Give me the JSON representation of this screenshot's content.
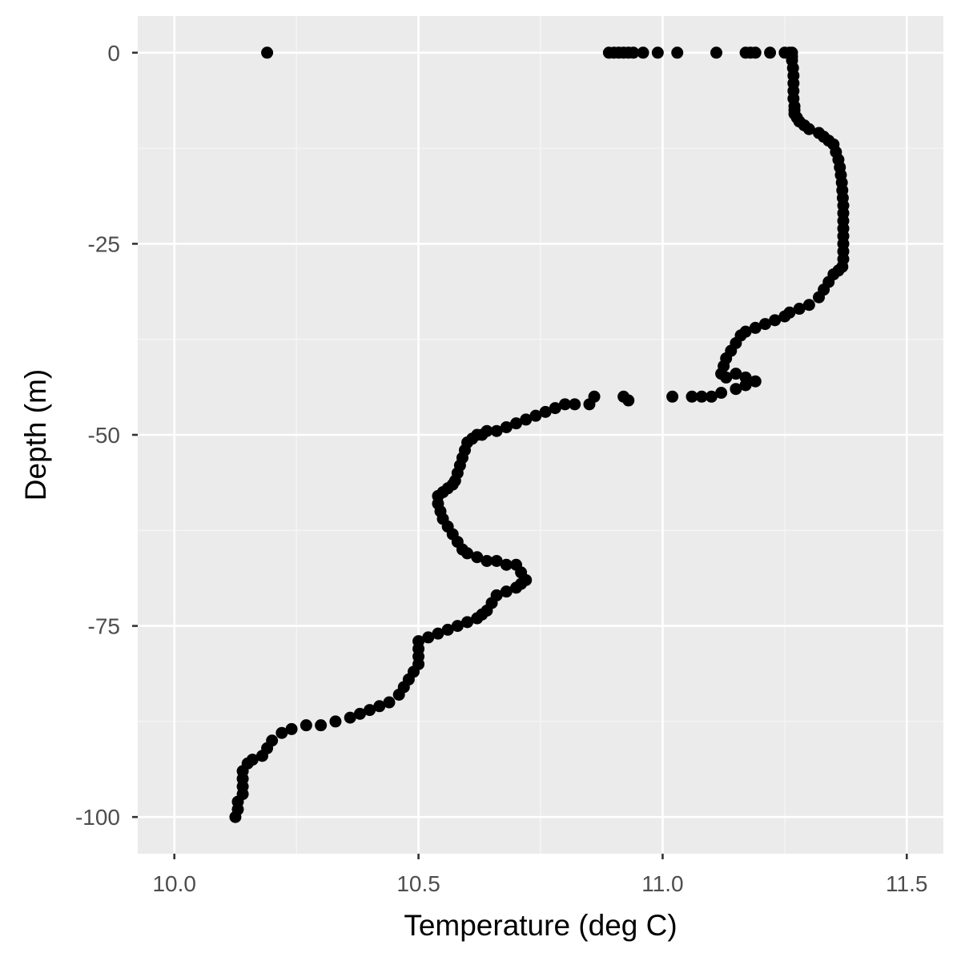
{
  "colors": {
    "panel_bg": "#EBEBEB",
    "grid_major": "#FFFFFF",
    "grid_minor": "#F5F5F5",
    "point": "#000000",
    "tick_text": "#4D4D4D"
  },
  "chart_data": {
    "type": "scatter",
    "title": "",
    "xlabel": "Temperature (deg C)",
    "ylabel": "Depth (m)",
    "xlim": [
      9.925,
      11.575
    ],
    "ylim": [
      -104.8,
      4.8
    ],
    "x_ticks": [
      10.0,
      10.5,
      11.0,
      11.5
    ],
    "x_tick_labels": [
      "10.0",
      "10.5",
      "11.0",
      "11.5"
    ],
    "y_ticks": [
      0,
      -25,
      -50,
      -75,
      -100
    ],
    "y_tick_labels": [
      "0",
      "-25",
      "-50",
      "-75",
      "-100"
    ],
    "grid": true,
    "legend": "none",
    "series": [
      {
        "points": [
          [
            10.19,
            0
          ],
          [
            10.89,
            0
          ],
          [
            10.9,
            0
          ],
          [
            10.91,
            0
          ],
          [
            10.92,
            0
          ],
          [
            10.93,
            0
          ],
          [
            10.94,
            0
          ],
          [
            10.96,
            0
          ],
          [
            10.99,
            0
          ],
          [
            11.03,
            0
          ],
          [
            11.11,
            0
          ],
          [
            11.17,
            0
          ],
          [
            11.18,
            0
          ],
          [
            11.19,
            0
          ],
          [
            11.22,
            0
          ],
          [
            11.25,
            0
          ],
          [
            11.26,
            0
          ],
          [
            11.265,
            0
          ],
          [
            11.265,
            -0.5
          ],
          [
            11.265,
            -1
          ],
          [
            11.267,
            -2
          ],
          [
            11.268,
            -3
          ],
          [
            11.268,
            -4
          ],
          [
            11.268,
            -5
          ],
          [
            11.268,
            -6
          ],
          [
            11.27,
            -7
          ],
          [
            11.27,
            -7.5
          ],
          [
            11.27,
            -8
          ],
          [
            11.275,
            -8.5
          ],
          [
            11.28,
            -9
          ],
          [
            11.29,
            -9.5
          ],
          [
            11.3,
            -10
          ],
          [
            11.32,
            -10.5
          ],
          [
            11.33,
            -11
          ],
          [
            11.34,
            -11.5
          ],
          [
            11.35,
            -12
          ],
          [
            11.355,
            -13
          ],
          [
            11.36,
            -14
          ],
          [
            11.363,
            -15
          ],
          [
            11.365,
            -16
          ],
          [
            11.367,
            -17
          ],
          [
            11.368,
            -18
          ],
          [
            11.369,
            -19
          ],
          [
            11.37,
            -20
          ],
          [
            11.37,
            -21
          ],
          [
            11.37,
            -22
          ],
          [
            11.37,
            -23
          ],
          [
            11.37,
            -24
          ],
          [
            11.37,
            -25
          ],
          [
            11.37,
            -26
          ],
          [
            11.37,
            -27
          ],
          [
            11.368,
            -28
          ],
          [
            11.36,
            -28.5
          ],
          [
            11.35,
            -29
          ],
          [
            11.34,
            -30
          ],
          [
            11.33,
            -31
          ],
          [
            11.32,
            -32
          ],
          [
            11.3,
            -33
          ],
          [
            11.28,
            -33.5
          ],
          [
            11.26,
            -34
          ],
          [
            11.25,
            -34.5
          ],
          [
            11.23,
            -35
          ],
          [
            11.21,
            -35.5
          ],
          [
            11.19,
            -36
          ],
          [
            11.17,
            -36.5
          ],
          [
            11.16,
            -37
          ],
          [
            11.15,
            -38
          ],
          [
            11.14,
            -39
          ],
          [
            11.13,
            -40
          ],
          [
            11.125,
            -41
          ],
          [
            11.12,
            -42
          ],
          [
            11.13,
            -42.5
          ],
          [
            11.15,
            -42
          ],
          [
            11.17,
            -42.5
          ],
          [
            11.19,
            -43
          ],
          [
            11.17,
            -43.5
          ],
          [
            11.15,
            -44
          ],
          [
            11.12,
            -44.5
          ],
          [
            11.1,
            -45
          ],
          [
            11.08,
            -45
          ],
          [
            11.06,
            -45
          ],
          [
            11.02,
            -45
          ],
          [
            10.93,
            -45.5
          ],
          [
            10.92,
            -45
          ],
          [
            10.86,
            -45
          ],
          [
            10.85,
            -46
          ],
          [
            10.82,
            -46
          ],
          [
            10.8,
            -46
          ],
          [
            10.78,
            -46.5
          ],
          [
            10.76,
            -47
          ],
          [
            10.74,
            -47.5
          ],
          [
            10.72,
            -48
          ],
          [
            10.7,
            -48.5
          ],
          [
            10.68,
            -49
          ],
          [
            10.66,
            -49.5
          ],
          [
            10.64,
            -49.5
          ],
          [
            10.63,
            -50
          ],
          [
            10.62,
            -50
          ],
          [
            10.61,
            -50.5
          ],
          [
            10.6,
            -51
          ],
          [
            10.595,
            -52
          ],
          [
            10.59,
            -53
          ],
          [
            10.585,
            -54
          ],
          [
            10.58,
            -55
          ],
          [
            10.575,
            -56
          ],
          [
            10.57,
            -56.5
          ],
          [
            10.56,
            -57
          ],
          [
            10.55,
            -57.5
          ],
          [
            10.54,
            -58
          ],
          [
            10.54,
            -59
          ],
          [
            10.545,
            -60
          ],
          [
            10.55,
            -61
          ],
          [
            10.56,
            -62
          ],
          [
            10.57,
            -63
          ],
          [
            10.58,
            -64
          ],
          [
            10.59,
            -65
          ],
          [
            10.6,
            -65.5
          ],
          [
            10.62,
            -66
          ],
          [
            10.64,
            -66.5
          ],
          [
            10.66,
            -66.5
          ],
          [
            10.68,
            -67
          ],
          [
            10.7,
            -67
          ],
          [
            10.71,
            -68
          ],
          [
            10.72,
            -69
          ],
          [
            10.71,
            -69.5
          ],
          [
            10.7,
            -70
          ],
          [
            10.68,
            -70.5
          ],
          [
            10.66,
            -71
          ],
          [
            10.65,
            -72
          ],
          [
            10.64,
            -73
          ],
          [
            10.63,
            -73.5
          ],
          [
            10.62,
            -74
          ],
          [
            10.6,
            -74.5
          ],
          [
            10.58,
            -75
          ],
          [
            10.56,
            -75.5
          ],
          [
            10.54,
            -76
          ],
          [
            10.52,
            -76.5
          ],
          [
            10.5,
            -77
          ],
          [
            10.5,
            -78
          ],
          [
            10.5,
            -79
          ],
          [
            10.5,
            -80
          ],
          [
            10.49,
            -81
          ],
          [
            10.48,
            -82
          ],
          [
            10.47,
            -83
          ],
          [
            10.46,
            -84
          ],
          [
            10.44,
            -85
          ],
          [
            10.42,
            -85.5
          ],
          [
            10.4,
            -86
          ],
          [
            10.38,
            -86.5
          ],
          [
            10.36,
            -87
          ],
          [
            10.33,
            -87.5
          ],
          [
            10.3,
            -88
          ],
          [
            10.27,
            -88
          ],
          [
            10.24,
            -88.5
          ],
          [
            10.22,
            -89
          ],
          [
            10.2,
            -90
          ],
          [
            10.19,
            -91
          ],
          [
            10.18,
            -92
          ],
          [
            10.16,
            -92.5
          ],
          [
            10.15,
            -93
          ],
          [
            10.14,
            -94
          ],
          [
            10.14,
            -95
          ],
          [
            10.14,
            -96
          ],
          [
            10.14,
            -97
          ],
          [
            10.13,
            -98
          ],
          [
            10.13,
            -99
          ],
          [
            10.125,
            -100
          ]
        ]
      }
    ]
  }
}
